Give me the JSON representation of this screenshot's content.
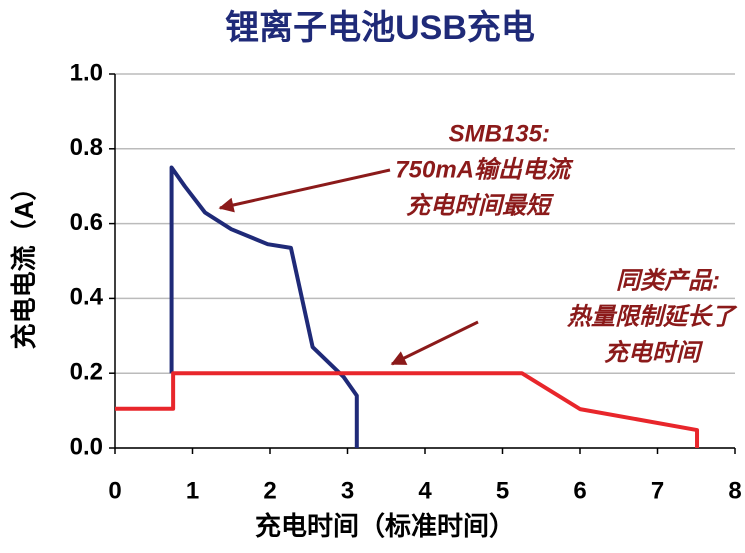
{
  "chart_data": {
    "type": "line",
    "title": "锂离子电池USB充电",
    "x_label": "充电时间（标准时间）",
    "y_label": "充电电流（A）",
    "xlim": [
      0,
      8
    ],
    "xticks": [
      0,
      1,
      2,
      3,
      4,
      5,
      6,
      7,
      8
    ],
    "ylim": [
      0,
      1
    ],
    "yticks": [
      {
        "value": 0,
        "label": "0.0"
      },
      {
        "value": 0.2,
        "label": "0.2"
      },
      {
        "value": 0.4,
        "label": "0.4"
      },
      {
        "value": 0.6,
        "label": "0.6"
      },
      {
        "value": 0.8,
        "label": "0.8"
      },
      {
        "value": 1,
        "label": "1.0"
      }
    ],
    "grid": true,
    "series": [
      {
        "color": "#1f2a78",
        "x": [
          0.73,
          0.73,
          0.9,
          1.16,
          1.5,
          1.97,
          2.27,
          2.55,
          2.95,
          3.12,
          3.12
        ],
        "values": [
          0.2,
          0.75,
          0.7,
          0.63,
          0.585,
          0.545,
          0.535,
          0.27,
          0.19,
          0.14,
          0
        ]
      },
      {
        "color": "#e8262b",
        "x": [
          0,
          0.75,
          0.75,
          5.25,
          6.0,
          7.51,
          7.51
        ],
        "values": [
          0.105,
          0.105,
          0.2,
          0.2,
          0.104,
          0.048,
          0
        ]
      }
    ],
    "annotations": [
      {
        "lines": [
          "SMB135:",
          "750mA输出电流",
          "充电时间最短"
        ]
      },
      {
        "lines": [
          "同类产品:",
          "热量限制延长了",
          "充电时间"
        ]
      }
    ]
  }
}
